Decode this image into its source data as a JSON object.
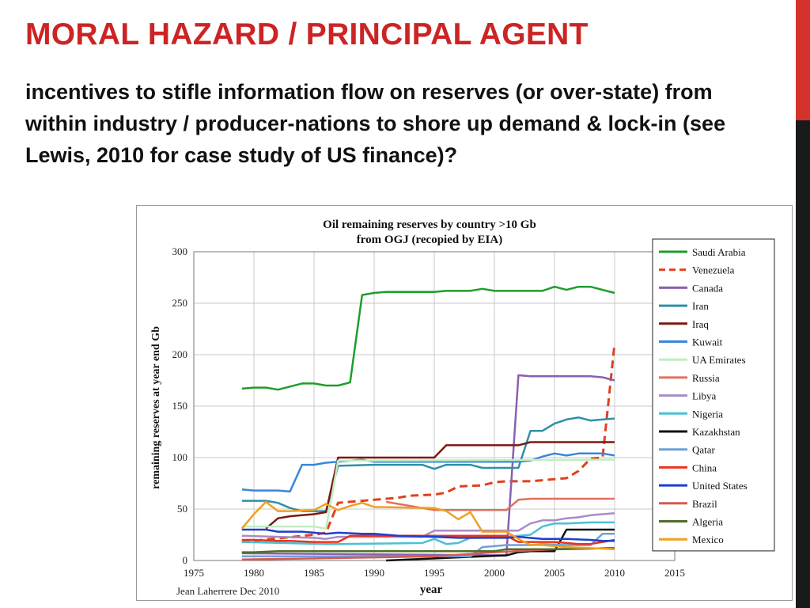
{
  "slide": {
    "title": "MORAL HAZARD / PRINCIPAL AGENT",
    "body": "incentives to stifle information flow on reserves (or over-state) from within industry / producer-nations to shore up demand & lock-in (see Lewis, 2010 for case study of US finance)?",
    "accent_color": "#cc2424"
  },
  "chart_data": {
    "type": "line",
    "title": "Oil remaining reserves by country >10 Gb",
    "subtitle": "from OGJ (recopied by EIA)",
    "xlabel": "year",
    "ylabel": "remaining reserves at year end Gb",
    "xlim": [
      1975,
      2015
    ],
    "ylim": [
      0,
      300
    ],
    "xticks": [
      "1975",
      "1980",
      "1985",
      "1990",
      "1995",
      "2000",
      "2005",
      "2010",
      "2015"
    ],
    "yticks": [
      "0",
      "50",
      "100",
      "150",
      "200",
      "250",
      "300"
    ],
    "grid": true,
    "legend_position": "right",
    "credit": "Jean Laherrere Dec 2010",
    "series": [
      {
        "name": "Saudi Arabia",
        "color": "#1e9e2a",
        "dash": false,
        "points": [
          [
            1979,
            167
          ],
          [
            1980,
            168
          ],
          [
            1981,
            168
          ],
          [
            1982,
            166
          ],
          [
            1983,
            169
          ],
          [
            1984,
            172
          ],
          [
            1985,
            172
          ],
          [
            1986,
            170
          ],
          [
            1987,
            170
          ],
          [
            1988,
            173
          ],
          [
            1989,
            258
          ],
          [
            1990,
            260
          ],
          [
            1991,
            261
          ],
          [
            1992,
            261
          ],
          [
            1995,
            261
          ],
          [
            1996,
            262
          ],
          [
            1998,
            262
          ],
          [
            1999,
            264
          ],
          [
            2000,
            262
          ],
          [
            2003,
            262
          ],
          [
            2004,
            262
          ],
          [
            2005,
            266
          ],
          [
            2006,
            263
          ],
          [
            2007,
            266
          ],
          [
            2008,
            266
          ],
          [
            2010,
            260
          ]
        ]
      },
      {
        "name": "Venezuela",
        "color": "#e0401e",
        "dash": true,
        "points": [
          [
            1979,
            18
          ],
          [
            1985,
            25
          ],
          [
            1986,
            27
          ],
          [
            1987,
            56
          ],
          [
            1989,
            58
          ],
          [
            1990,
            59
          ],
          [
            1992,
            61
          ],
          [
            1993,
            63
          ],
          [
            1995,
            64
          ],
          [
            1996,
            66
          ],
          [
            1997,
            72
          ],
          [
            1999,
            73
          ],
          [
            2000,
            76
          ],
          [
            2001,
            77
          ],
          [
            2003,
            77
          ],
          [
            2004,
            78
          ],
          [
            2006,
            80
          ],
          [
            2007,
            87
          ],
          [
            2008,
            99
          ],
          [
            2009,
            100
          ],
          [
            2010,
            211
          ]
        ]
      },
      {
        "name": "Canada",
        "color": "#8a5fb0",
        "dash": false,
        "points": [
          [
            1979,
            7
          ],
          [
            2001,
            5
          ],
          [
            2002,
            180
          ],
          [
            2003,
            179
          ],
          [
            2008,
            179
          ],
          [
            2009,
            178
          ],
          [
            2010,
            175
          ]
        ]
      },
      {
        "name": "Iran",
        "color": "#2f8fa8",
        "dash": false,
        "points": [
          [
            1979,
            58
          ],
          [
            1981,
            58
          ],
          [
            1982,
            56
          ],
          [
            1983,
            51
          ],
          [
            1984,
            48
          ],
          [
            1986,
            48
          ],
          [
            1987,
            92
          ],
          [
            1990,
            93
          ],
          [
            1994,
            93
          ],
          [
            1995,
            89
          ],
          [
            1996,
            93
          ],
          [
            1998,
            93
          ],
          [
            1999,
            90
          ],
          [
            2002,
            90
          ],
          [
            2003,
            126
          ],
          [
            2004,
            126
          ],
          [
            2005,
            133
          ],
          [
            2006,
            137
          ],
          [
            2007,
            139
          ],
          [
            2008,
            136
          ],
          [
            2010,
            138
          ]
        ]
      },
      {
        "name": "Iraq",
        "color": "#7a1a12",
        "dash": false,
        "points": [
          [
            1981,
            31
          ],
          [
            1982,
            41
          ],
          [
            1983,
            43
          ],
          [
            1984,
            44
          ],
          [
            1985,
            45
          ],
          [
            1986,
            47
          ],
          [
            1987,
            100
          ],
          [
            1995,
            100
          ],
          [
            1996,
            112
          ],
          [
            2002,
            112
          ],
          [
            2003,
            115
          ],
          [
            2010,
            115
          ]
        ]
      },
      {
        "name": "Kuwait",
        "color": "#3a86d8",
        "dash": false,
        "points": [
          [
            1979,
            69
          ],
          [
            1980,
            68
          ],
          [
            1982,
            68
          ],
          [
            1983,
            67
          ],
          [
            1984,
            93
          ],
          [
            1985,
            93
          ],
          [
            1986,
            95
          ],
          [
            1987,
            96
          ],
          [
            1988,
            97
          ],
          [
            1989,
            98
          ],
          [
            1990,
            96
          ],
          [
            2002,
            96
          ],
          [
            2003,
            97
          ],
          [
            2004,
            101
          ],
          [
            2005,
            104
          ],
          [
            2006,
            102
          ],
          [
            2007,
            104
          ],
          [
            2009,
            104
          ],
          [
            2010,
            102
          ]
        ]
      },
      {
        "name": "UA Emirates",
        "color": "#bfeec0",
        "dash": false,
        "points": [
          [
            1979,
            33
          ],
          [
            1985,
            33
          ],
          [
            1986,
            31
          ],
          [
            1987,
            97
          ],
          [
            2010,
            98
          ]
        ]
      },
      {
        "name": "Russia",
        "color": "#e0705c",
        "dash": false,
        "points": [
          [
            1991,
            57
          ],
          [
            1995,
            49
          ],
          [
            2001,
            49
          ],
          [
            2002,
            59
          ],
          [
            2003,
            60
          ],
          [
            2010,
            60
          ]
        ]
      },
      {
        "name": "Libya",
        "color": "#a98bc8",
        "dash": false,
        "points": [
          [
            1979,
            24
          ],
          [
            1985,
            22
          ],
          [
            1986,
            21
          ],
          [
            1987,
            23
          ],
          [
            1994,
            23
          ],
          [
            1995,
            29
          ],
          [
            2002,
            29
          ],
          [
            2003,
            36
          ],
          [
            2004,
            39
          ],
          [
            2005,
            39
          ],
          [
            2006,
            41
          ],
          [
            2007,
            42
          ],
          [
            2008,
            44
          ],
          [
            2010,
            46
          ]
        ]
      },
      {
        "name": "Nigeria",
        "color": "#4cc0d4",
        "dash": false,
        "points": [
          [
            1979,
            18
          ],
          [
            1986,
            16
          ],
          [
            1987,
            16
          ],
          [
            1994,
            17
          ],
          [
            1995,
            21
          ],
          [
            1996,
            16
          ],
          [
            1997,
            17
          ],
          [
            1998,
            22
          ],
          [
            1999,
            22
          ],
          [
            2002,
            24
          ],
          [
            2003,
            25
          ],
          [
            2004,
            33
          ],
          [
            2005,
            36
          ],
          [
            2006,
            36
          ],
          [
            2008,
            37
          ],
          [
            2010,
            37
          ]
        ]
      },
      {
        "name": "Kazakhstan",
        "color": "#111111",
        "dash": false,
        "points": [
          [
            1991,
            0
          ],
          [
            2001,
            5
          ],
          [
            2002,
            8
          ],
          [
            2003,
            9
          ],
          [
            2004,
            9
          ],
          [
            2005,
            9
          ],
          [
            2006,
            30
          ],
          [
            2010,
            30
          ]
        ]
      },
      {
        "name": "Qatar",
        "color": "#6f9fd8",
        "dash": false,
        "points": [
          [
            1979,
            4
          ],
          [
            1998,
            4
          ],
          [
            1999,
            13
          ],
          [
            2001,
            15
          ],
          [
            2002,
            15
          ],
          [
            2003,
            15
          ],
          [
            2004,
            16
          ],
          [
            2006,
            15
          ],
          [
            2008,
            15
          ],
          [
            2009,
            26
          ],
          [
            2010,
            26
          ]
        ]
      },
      {
        "name": "China",
        "color": "#e8341c",
        "dash": false,
        "points": [
          [
            1979,
            20
          ],
          [
            1980,
            20
          ],
          [
            1982,
            19
          ],
          [
            1983,
            19
          ],
          [
            1985,
            18
          ],
          [
            1986,
            18
          ],
          [
            1987,
            18
          ],
          [
            1988,
            24
          ],
          [
            1989,
            24
          ],
          [
            1994,
            24
          ],
          [
            1995,
            24
          ],
          [
            1997,
            24
          ],
          [
            1998,
            24
          ],
          [
            2000,
            24
          ],
          [
            2001,
            24
          ],
          [
            2002,
            18
          ],
          [
            2004,
            18
          ],
          [
            2005,
            18
          ],
          [
            2006,
            17
          ],
          [
            2007,
            16
          ],
          [
            2008,
            16
          ],
          [
            2010,
            20
          ]
        ]
      },
      {
        "name": "United States",
        "color": "#1d3fcf",
        "dash": false,
        "points": [
          [
            1979,
            30
          ],
          [
            1981,
            30
          ],
          [
            1982,
            28
          ],
          [
            1984,
            28
          ],
          [
            1985,
            27
          ],
          [
            1986,
            26
          ],
          [
            1987,
            27
          ],
          [
            1989,
            26
          ],
          [
            1990,
            26
          ],
          [
            1992,
            24
          ],
          [
            1995,
            23
          ],
          [
            1997,
            22
          ],
          [
            1999,
            22
          ],
          [
            2001,
            22
          ],
          [
            2002,
            23
          ],
          [
            2004,
            21
          ],
          [
            2006,
            21
          ],
          [
            2008,
            20
          ],
          [
            2009,
            19
          ],
          [
            2010,
            19
          ]
        ]
      },
      {
        "name": "Brazil",
        "color": "#d65a50",
        "dash": false,
        "points": [
          [
            1979,
            1
          ],
          [
            1985,
            2
          ],
          [
            1995,
            4
          ],
          [
            2000,
            8
          ],
          [
            2005,
            11
          ],
          [
            2010,
            12
          ]
        ]
      },
      {
        "name": "Algeria",
        "color": "#4e6e28",
        "dash": false,
        "points": [
          [
            1979,
            8
          ],
          [
            1980,
            8
          ],
          [
            1982,
            9
          ],
          [
            1990,
            9
          ],
          [
            1995,
            9
          ],
          [
            2000,
            9
          ],
          [
            2001,
            11
          ],
          [
            2003,
            11
          ],
          [
            2005,
            11
          ],
          [
            2010,
            12
          ]
        ]
      },
      {
        "name": "Mexico",
        "color": "#f0a020",
        "dash": false,
        "points": [
          [
            1979,
            31
          ],
          [
            1980,
            45
          ],
          [
            1981,
            57
          ],
          [
            1982,
            48
          ],
          [
            1983,
            48
          ],
          [
            1985,
            49
          ],
          [
            1986,
            55
          ],
          [
            1987,
            49
          ],
          [
            1988,
            53
          ],
          [
            1989,
            56
          ],
          [
            1990,
            52
          ],
          [
            1995,
            51
          ],
          [
            1996,
            48
          ],
          [
            1997,
            40
          ],
          [
            1998,
            47
          ],
          [
            1999,
            28
          ],
          [
            2001,
            28
          ],
          [
            2002,
            21
          ],
          [
            2003,
            15
          ],
          [
            2004,
            15
          ],
          [
            2006,
            13
          ],
          [
            2008,
            12
          ],
          [
            2010,
            11
          ]
        ]
      }
    ]
  }
}
